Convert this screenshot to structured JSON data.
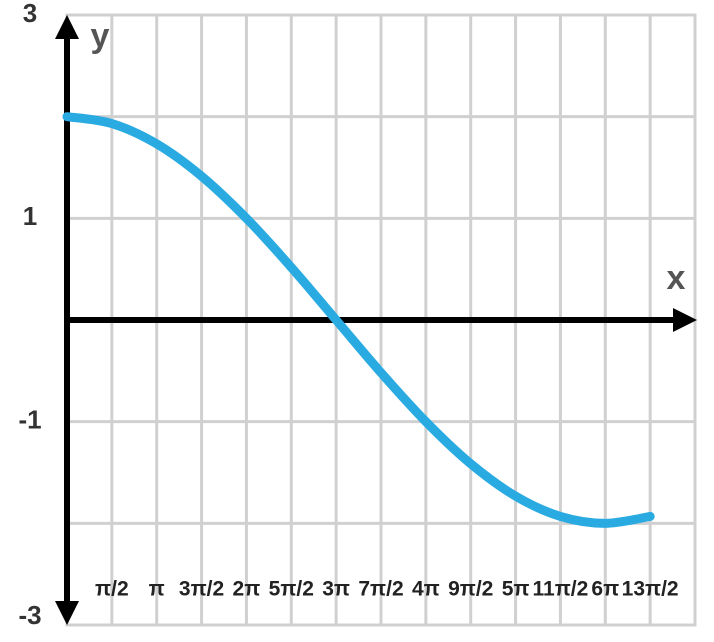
{
  "chart_data": {
    "type": "line",
    "x_label": "x",
    "y_label": "y",
    "xlim": [
      0,
      21.9911
    ],
    "ylim": [
      -3,
      3
    ],
    "xticks": [
      {
        "value": 1.5708,
        "label": "π/2"
      },
      {
        "value": 3.1416,
        "label": "π"
      },
      {
        "value": 4.7124,
        "label": "3π/2"
      },
      {
        "value": 6.2832,
        "label": "2π"
      },
      {
        "value": 7.854,
        "label": "5π/2"
      },
      {
        "value": 9.4248,
        "label": "3π"
      },
      {
        "value": 10.9956,
        "label": "7π/2"
      },
      {
        "value": 12.5664,
        "label": "4π"
      },
      {
        "value": 14.1372,
        "label": "9π/2"
      },
      {
        "value": 15.708,
        "label": "5π"
      },
      {
        "value": 17.2788,
        "label": "11π/2"
      },
      {
        "value": 18.8496,
        "label": "6π"
      },
      {
        "value": 20.4204,
        "label": "13π/2"
      }
    ],
    "yticks": [
      -3,
      -1,
      1,
      3
    ],
    "grid": true,
    "x": [
      0,
      1.5708,
      3.1416,
      4.7124,
      6.2832,
      7.854,
      9.4248,
      10.9956,
      12.5664,
      14.1372,
      15.708,
      17.2788,
      18.8496,
      20.4204
    ],
    "series": [
      {
        "color": "#29abe2",
        "values": [
          2,
          1.932,
          1.732,
          1.414,
          1,
          0.518,
          0,
          -0.518,
          -1,
          -1.414,
          -1.732,
          -1.932,
          -2,
          -1.932
        ]
      }
    ]
  }
}
